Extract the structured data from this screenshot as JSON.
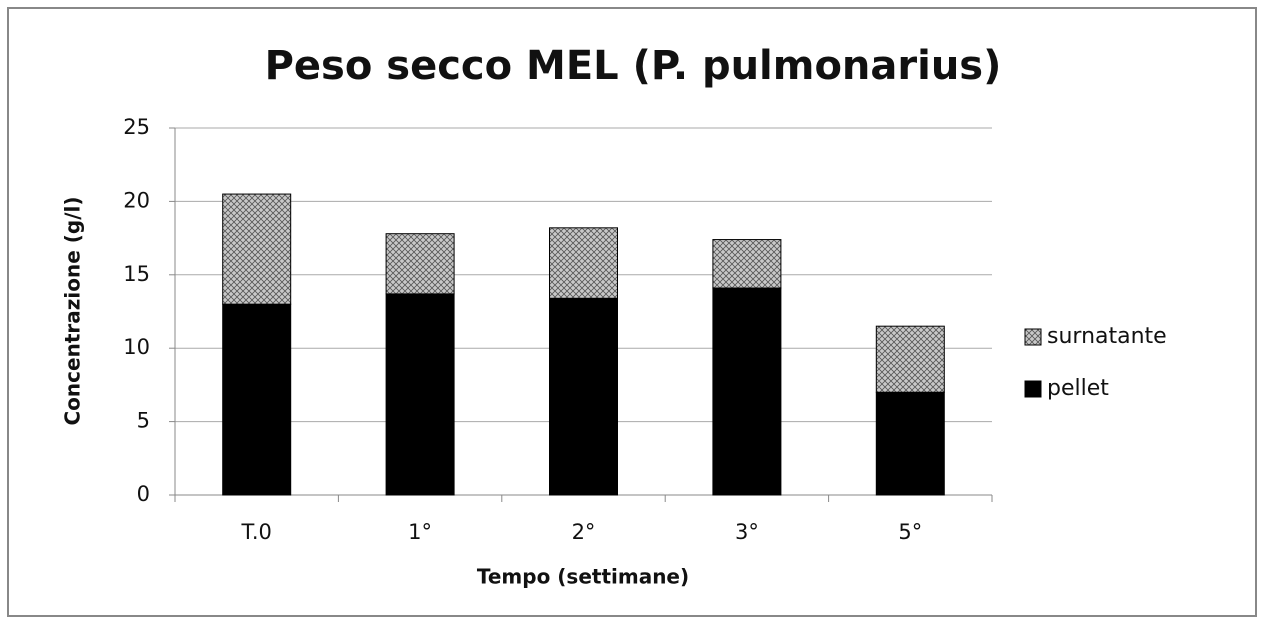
{
  "chart_data": {
    "type": "stacked_bar",
    "title": "Peso secco MEL (P. pulmonarius)",
    "x_label": "Tempo (settimane)",
    "y_label": "Concentrazione (g/l)",
    "categories": [
      "T.0",
      "1°",
      "2°",
      "3°",
      "5°"
    ],
    "series": [
      {
        "name": "pellet",
        "color": "#000000",
        "values": [
          13.0,
          13.7,
          13.4,
          14.1,
          7.0
        ]
      },
      {
        "name": "surnatante",
        "color": "#c8c8c8",
        "values": [
          7.5,
          4.1,
          4.8,
          3.3,
          4.5
        ]
      }
    ],
    "ylim": [
      0,
      25
    ],
    "yticks": [
      0,
      5,
      10,
      15,
      20,
      25
    ],
    "grid": true,
    "legend": "right"
  }
}
